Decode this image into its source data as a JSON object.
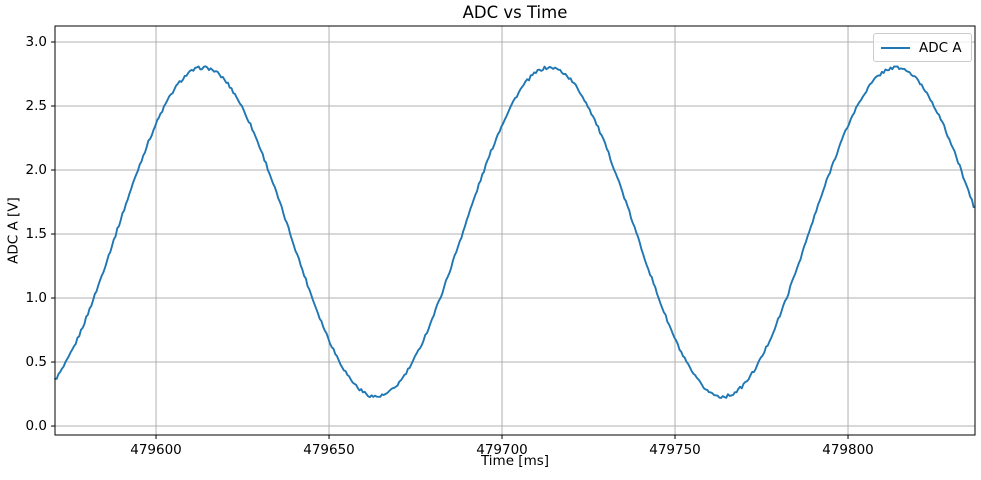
{
  "figure": {
    "background": "#ffffff",
    "spine_color": "#000000",
    "text_color": "#000000"
  },
  "chart_data": {
    "type": "line",
    "title": "ADC vs Time",
    "xlabel": "Time [ms]",
    "ylabel": "ADC A [V]",
    "grid": true,
    "grid_color": "#b0b0b0",
    "legend": {
      "position": "upper right",
      "entries": [
        {
          "label": "ADC A",
          "color": "#1f77b4"
        }
      ]
    },
    "xlim": [
      479570.8,
      479836.7
    ],
    "ylim": [
      -0.07,
      3.125
    ],
    "xticks": [
      479600,
      479650,
      479700,
      479750,
      479800
    ],
    "yticks": [
      0.0,
      0.5,
      1.0,
      1.5,
      2.0,
      2.5,
      3.0
    ],
    "series": [
      {
        "name": "ADC A",
        "color": "#1f77b4",
        "line_width": 1.9,
        "waveform": {
          "shape": "sine",
          "offset_v": 1.515,
          "amplitude_v": 1.285,
          "period_ms": 100.1,
          "peak_time_ms": 479613.6,
          "noise_v": 0.013,
          "sample_step_ms": 0.5
        },
        "key_points": [
          {
            "t_ms": 479570.8,
            "v": 0.35,
            "feature": "start"
          },
          {
            "t_ms": 479613.6,
            "v": 2.8,
            "feature": "peak"
          },
          {
            "t_ms": 479664.0,
            "v": 0.24,
            "feature": "trough"
          },
          {
            "t_ms": 479713.5,
            "v": 2.81,
            "feature": "peak"
          },
          {
            "t_ms": 479764.5,
            "v": 0.22,
            "feature": "trough"
          },
          {
            "t_ms": 479813.9,
            "v": 2.8,
            "feature": "peak"
          },
          {
            "t_ms": 479836.7,
            "v": 1.73,
            "feature": "end"
          }
        ]
      }
    ]
  }
}
